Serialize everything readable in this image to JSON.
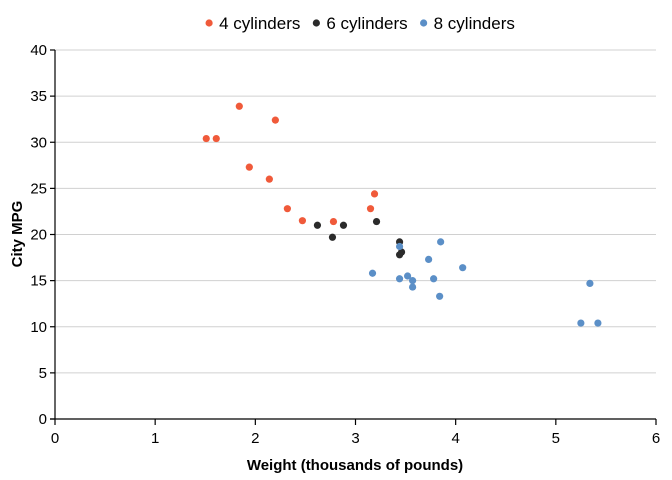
{
  "chart_data": {
    "type": "scatter",
    "title": "",
    "xlabel": "Weight (thousands of pounds)",
    "ylabel": "City MPG",
    "xlim": [
      0,
      6
    ],
    "ylim": [
      0,
      40
    ],
    "xticks": [
      0,
      1,
      2,
      3,
      4,
      5,
      6
    ],
    "yticks": [
      0,
      5,
      10,
      15,
      20,
      25,
      30,
      35,
      40
    ],
    "grid": "horizontal",
    "legend_position": "top",
    "series": [
      {
        "name": "4 cylinders",
        "color": "#f05a3a",
        "points": [
          [
            1.51,
            30.4
          ],
          [
            1.61,
            30.4
          ],
          [
            1.84,
            33.9
          ],
          [
            2.2,
            32.4
          ],
          [
            1.94,
            27.3
          ],
          [
            2.14,
            26.0
          ],
          [
            2.32,
            22.8
          ],
          [
            2.47,
            21.5
          ],
          [
            2.78,
            21.4
          ],
          [
            3.15,
            22.8
          ],
          [
            3.19,
            24.4
          ]
        ]
      },
      {
        "name": "6 cylinders",
        "color": "#2b2b2b",
        "points": [
          [
            2.62,
            21.0
          ],
          [
            2.77,
            19.7
          ],
          [
            2.88,
            21.0
          ],
          [
            3.21,
            21.4
          ],
          [
            3.44,
            19.2
          ],
          [
            3.44,
            17.8
          ],
          [
            3.46,
            18.1
          ]
        ]
      },
      {
        "name": "8 cylinders",
        "color": "#5b8fc7",
        "points": [
          [
            3.17,
            15.8
          ],
          [
            3.44,
            18.7
          ],
          [
            3.44,
            15.2
          ],
          [
            3.52,
            15.5
          ],
          [
            3.57,
            15.0
          ],
          [
            3.57,
            14.3
          ],
          [
            3.73,
            17.3
          ],
          [
            3.78,
            15.2
          ],
          [
            3.84,
            13.3
          ],
          [
            3.85,
            19.2
          ],
          [
            4.07,
            16.4
          ],
          [
            5.25,
            10.4
          ],
          [
            5.34,
            14.7
          ],
          [
            5.42,
            10.4
          ]
        ]
      }
    ]
  }
}
